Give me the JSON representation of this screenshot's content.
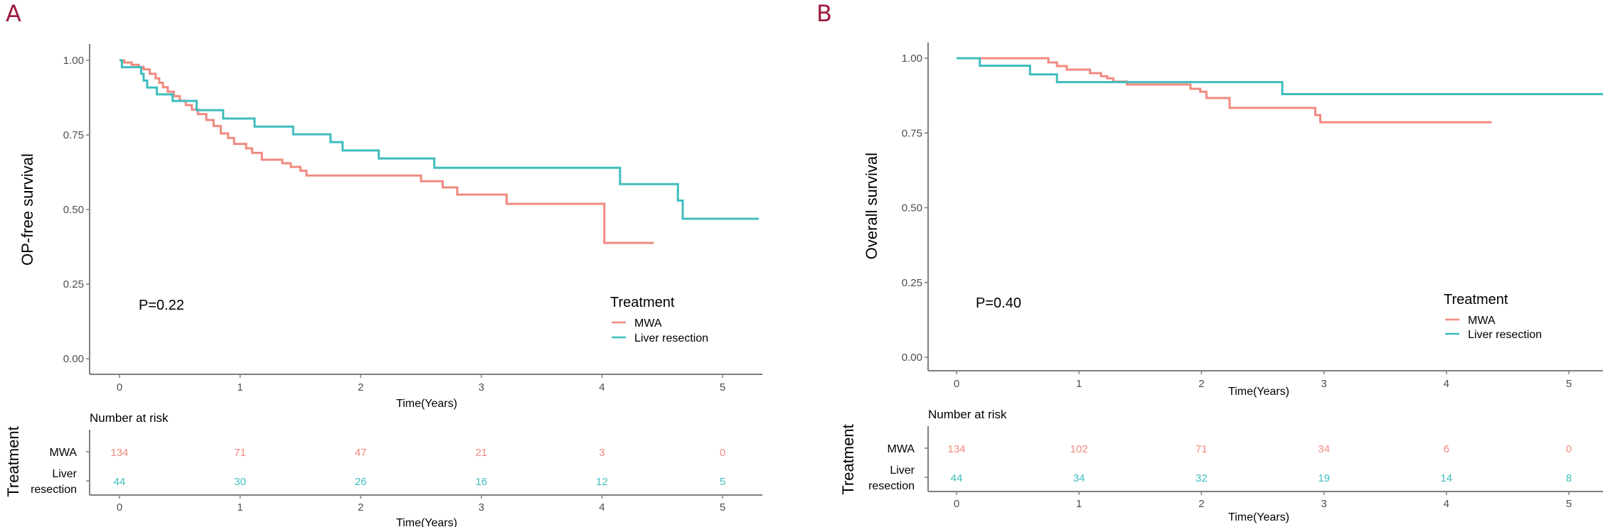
{
  "figure": {
    "panels": [
      {
        "label": "A",
        "ylabel": "OP-free survival",
        "xlabel": "Time(Years)",
        "pvalue": "P=0.22",
        "legend": {
          "title": "Treatment",
          "items": [
            "MWA",
            "Liver resection"
          ]
        },
        "risk_table": {
          "title": "Number at risk",
          "ylabel": "Treatment",
          "row_labels": [
            "MWA",
            "Liver\nresection"
          ],
          "xlabel": "Time(Years)"
        }
      },
      {
        "label": "B",
        "ylabel": "Overall survival",
        "xlabel": "Time(Years)",
        "pvalue": "P=0.40",
        "legend": {
          "title": "Treatment",
          "items": [
            "MWA",
            "Liver resection"
          ]
        },
        "risk_table": {
          "title": "Number at risk",
          "ylabel": "Treatment",
          "row_labels": [
            "MWA",
            "Liver\nresection"
          ],
          "xlabel": "Time(Years)"
        }
      }
    ],
    "colors": {
      "MWA": "#f08a80",
      "Liver resection": "#3fbdbd"
    }
  },
  "chart_data": [
    {
      "type": "line",
      "subtype": "kaplan-meier-step",
      "panel": "A",
      "title": "",
      "xlabel": "Time(Years)",
      "ylabel": "OP-free survival",
      "xlim": [
        -0.25,
        5.3
      ],
      "ylim": [
        -0.07,
        1.06
      ],
      "xticks": [
        0,
        1,
        2,
        3,
        4,
        5
      ],
      "yticks": [
        0.0,
        0.25,
        0.5,
        0.75,
        1.0
      ],
      "ytick_labels": [
        "0.00",
        "0.25",
        "0.50",
        "0.75",
        "1.00"
      ],
      "grid": false,
      "legend_position": "bottom-right",
      "annotation": "P=0.22",
      "series": [
        {
          "name": "MWA",
          "color": "#f08a80",
          "steps": [
            [
              0,
              1.0
            ],
            [
              0.04,
              0.993
            ],
            [
              0.1,
              0.985
            ],
            [
              0.16,
              0.978
            ],
            [
              0.2,
              0.97
            ],
            [
              0.25,
              0.955
            ],
            [
              0.3,
              0.94
            ],
            [
              0.33,
              0.925
            ],
            [
              0.36,
              0.91
            ],
            [
              0.4,
              0.895
            ],
            [
              0.45,
              0.88
            ],
            [
              0.5,
              0.865
            ],
            [
              0.55,
              0.85
            ],
            [
              0.6,
              0.835
            ],
            [
              0.65,
              0.82
            ],
            [
              0.72,
              0.8
            ],
            [
              0.78,
              0.78
            ],
            [
              0.84,
              0.755
            ],
            [
              0.9,
              0.74
            ],
            [
              0.95,
              0.72
            ],
            [
              1.05,
              0.705
            ],
            [
              1.1,
              0.69
            ],
            [
              1.18,
              0.667
            ],
            [
              1.35,
              0.655
            ],
            [
              1.42,
              0.643
            ],
            [
              1.5,
              0.63
            ],
            [
              1.55,
              0.614
            ],
            [
              2.5,
              0.595
            ],
            [
              2.68,
              0.574
            ],
            [
              2.8,
              0.55
            ],
            [
              3.21,
              0.519
            ],
            [
              4.02,
              0.388
            ],
            [
              4.43,
              0.388
            ]
          ],
          "number_at_risk": [
            134,
            71,
            47,
            21,
            3,
            0
          ]
        },
        {
          "name": "Liver resection",
          "color": "#3fbdbd",
          "steps": [
            [
              0,
              1.0
            ],
            [
              0.02,
              0.977
            ],
            [
              0.18,
              0.955
            ],
            [
              0.2,
              0.932
            ],
            [
              0.23,
              0.909
            ],
            [
              0.31,
              0.886
            ],
            [
              0.44,
              0.864
            ],
            [
              0.64,
              0.833
            ],
            [
              0.86,
              0.805
            ],
            [
              1.12,
              0.778
            ],
            [
              1.44,
              0.752
            ],
            [
              1.75,
              0.726
            ],
            [
              1.85,
              0.698
            ],
            [
              2.15,
              0.671
            ],
            [
              2.61,
              0.64
            ],
            [
              4.15,
              0.585
            ],
            [
              4.63,
              0.53
            ],
            [
              4.67,
              0.469
            ],
            [
              5.3,
              0.469
            ]
          ],
          "number_at_risk": [
            44,
            30,
            26,
            16,
            12,
            5
          ]
        }
      ],
      "risk_table": {
        "title": "Number at risk",
        "times": [
          0,
          1,
          2,
          3,
          4,
          5
        ]
      }
    },
    {
      "type": "line",
      "subtype": "kaplan-meier-step",
      "panel": "B",
      "title": "",
      "xlabel": "Time(Years)",
      "ylabel": "Overall survival",
      "xlim": [
        -0.25,
        5.3
      ],
      "ylim": [
        -0.05,
        1.05
      ],
      "xticks": [
        0,
        1,
        2,
        3,
        4,
        5
      ],
      "yticks": [
        0.0,
        0.25,
        0.5,
        0.75,
        1.0
      ],
      "ytick_labels": [
        "0.00",
        "0.25",
        "0.50",
        "0.75",
        "1.00"
      ],
      "grid": false,
      "legend_position": "bottom-right",
      "annotation": "P=0.40",
      "series": [
        {
          "name": "MWA",
          "color": "#f08a80",
          "steps": [
            [
              0,
              1.0
            ],
            [
              0.75,
              0.986
            ],
            [
              0.82,
              0.974
            ],
            [
              0.9,
              0.962
            ],
            [
              1.09,
              0.95
            ],
            [
              1.18,
              0.94
            ],
            [
              1.23,
              0.933
            ],
            [
              1.28,
              0.922
            ],
            [
              1.39,
              0.912
            ],
            [
              1.91,
              0.898
            ],
            [
              1.99,
              0.888
            ],
            [
              2.04,
              0.867
            ],
            [
              2.23,
              0.834
            ],
            [
              2.93,
              0.81
            ],
            [
              2.97,
              0.786
            ],
            [
              4.37,
              0.786
            ]
          ],
          "number_at_risk": [
            134,
            102,
            71,
            34,
            6,
            0
          ]
        },
        {
          "name": "Liver resection",
          "color": "#3fbdbd",
          "steps": [
            [
              0,
              1.0
            ],
            [
              0.19,
              0.975
            ],
            [
              0.6,
              0.946
            ],
            [
              0.82,
              0.92
            ],
            [
              2.66,
              0.88
            ],
            [
              5.3,
              0.88
            ]
          ],
          "number_at_risk": [
            44,
            34,
            32,
            19,
            14,
            8
          ]
        }
      ],
      "risk_table": {
        "title": "Number at risk",
        "times": [
          0,
          1,
          2,
          3,
          4,
          5
        ]
      }
    }
  ]
}
